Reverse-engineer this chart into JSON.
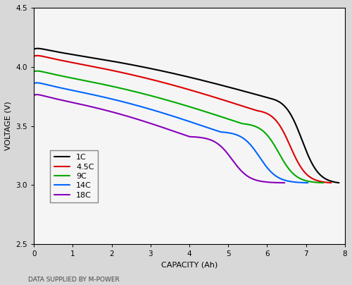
{
  "xlabel": "CAPACITY (Ah)",
  "ylabel": "VOLTAGE (V)",
  "footnote": "DATA SUPPLIED BY M-POWER",
  "xlim": [
    0,
    8
  ],
  "ylim": [
    2.5,
    4.5
  ],
  "xticks": [
    0,
    1,
    2,
    3,
    4,
    5,
    6,
    7,
    8
  ],
  "yticks": [
    2.5,
    3.0,
    3.5,
    4.0,
    4.5
  ],
  "background_color": "#d8d8d8",
  "plot_bg_color": "#f5f5f5",
  "series": [
    {
      "label": "1C",
      "color": "#000000",
      "linewidth": 1.5,
      "x_end": 7.85,
      "y_start": 4.15,
      "y_mid": 3.73,
      "y_end": 3.02,
      "knee": 0.78,
      "plateau_slope": 0.55,
      "drop_steepness": 8.0
    },
    {
      "label": "4.5C",
      "color": "#dd0000",
      "linewidth": 1.5,
      "x_end": 7.65,
      "y_start": 4.09,
      "y_mid": 3.63,
      "y_end": 3.02,
      "knee": 0.75,
      "plateau_slope": 0.55,
      "drop_steepness": 9.0
    },
    {
      "label": "9C",
      "color": "#00aa00",
      "linewidth": 1.5,
      "x_end": 7.45,
      "y_start": 3.96,
      "y_mid": 3.52,
      "y_end": 3.02,
      "knee": 0.72,
      "plateau_slope": 0.55,
      "drop_steepness": 9.5
    },
    {
      "label": "14C",
      "color": "#0066ff",
      "linewidth": 1.5,
      "x_end": 7.05,
      "y_start": 3.86,
      "y_mid": 3.45,
      "y_end": 3.02,
      "knee": 0.68,
      "plateau_slope": 0.55,
      "drop_steepness": 10.0
    },
    {
      "label": "18C",
      "color": "#8800bb",
      "linewidth": 1.5,
      "x_end": 6.45,
      "y_start": 3.76,
      "y_mid": 3.41,
      "y_end": 3.02,
      "knee": 0.62,
      "plateau_slope": 0.55,
      "drop_steepness": 11.0
    }
  ]
}
